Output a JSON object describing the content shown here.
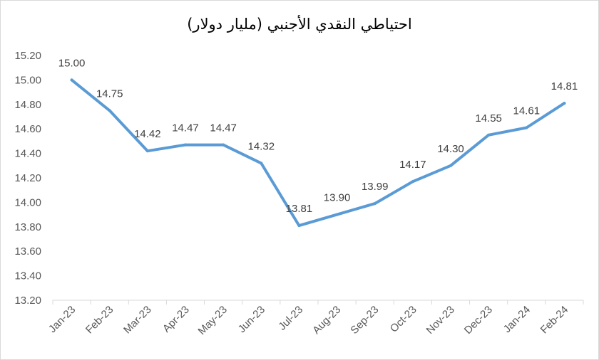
{
  "chart_data": {
    "type": "line",
    "title": "احتياطي النقدي الأجنبي (مليار دولار)",
    "categories": [
      "Jan-23",
      "Feb-23",
      "Mar-23",
      "Apr-23",
      "May-23",
      "Jun-23",
      "Jul-23",
      "Aug-23",
      "Sep-23",
      "Oct-23",
      "Nov-23",
      "Dec-23",
      "Jan-24",
      "Feb-24"
    ],
    "series": [
      {
        "values": [
          15.0,
          14.75,
          14.42,
          14.47,
          14.47,
          14.32,
          13.81,
          13.9,
          13.99,
          14.17,
          14.3,
          14.55,
          14.61,
          14.81
        ],
        "labels": [
          "15.00",
          "14.75",
          "14.42",
          "14.47",
          "14.47",
          "14.32",
          "13.81",
          "13.90",
          "13.99",
          "14.17",
          "14.30",
          "14.55",
          "14.61",
          "14.81"
        ],
        "color": "#5b9bd5"
      }
    ],
    "ylim": [
      13.2,
      15.2
    ],
    "y_ticks": [
      "13.20",
      "13.40",
      "13.60",
      "13.80",
      "14.00",
      "14.20",
      "14.40",
      "14.60",
      "14.80",
      "15.00",
      "15.20"
    ],
    "xlabel": "",
    "ylabel": "",
    "grid": false,
    "legend": "none"
  }
}
